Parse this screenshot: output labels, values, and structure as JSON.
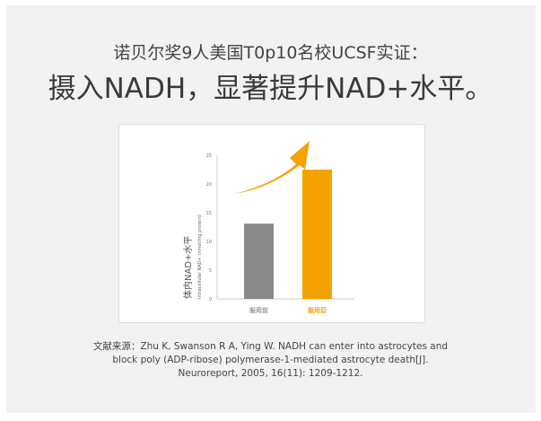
{
  "heading": {
    "line1": "诺贝尔奖9人美国T0p10名校UCSF实证：",
    "line2": "摄入NADH，显著提升NAD+水平。"
  },
  "chart_data": {
    "type": "bar",
    "categories": [
      "服用前",
      "服用后"
    ],
    "values": [
      13.1,
      22.5
    ],
    "colors": [
      "#8a8a8a",
      "#f5a200"
    ],
    "ylabel": "体内NAD+水平",
    "ylabel_sub": "Intracellular NAD+ (nmol/mg protein)",
    "ylim": [
      0,
      25
    ],
    "yticks": [
      "0",
      "5",
      "10",
      "15",
      "20",
      "25"
    ],
    "arrow_color": "#f5a200",
    "grid": false
  },
  "reference": {
    "line1": "文献来源：Zhu K, Swanson R A, Ying W. NADH can enter into astrocytes and",
    "line2": "block poly (ADP-ribose) polymerase-1-mediated astrocyte death[J].",
    "line3": "Neuroreport, 2005, 16(11): 1209-1212."
  }
}
